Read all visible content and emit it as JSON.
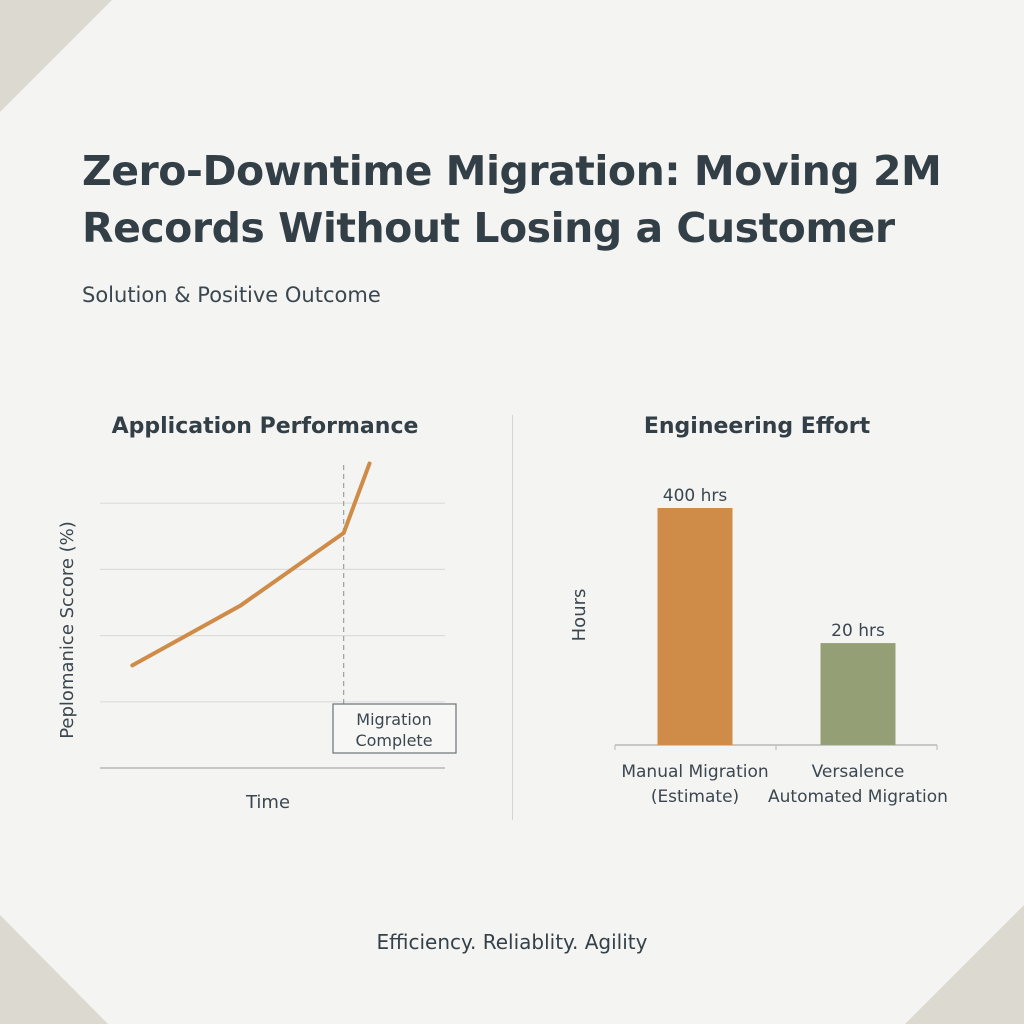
{
  "header": {
    "title": "Zero-Downtime Migration: Moving 2M Records Without Losing a Customer",
    "subtitle": "Solution & Positive Outcome"
  },
  "footer": {
    "tagline": "Efficiency. Reliablity. Agility"
  },
  "colors": {
    "orange": "#cf8c48",
    "green": "#959f75",
    "grid": "#dcdcdc",
    "axis": "#b7bab8",
    "text": "#3b4750",
    "corner": "#dcdad0"
  },
  "chart_data": [
    {
      "type": "line",
      "title": "Application Performance",
      "xlabel": "Time",
      "ylabel": "Peplomanice Sccore (%)",
      "ylim": [
        0,
        100
      ],
      "grid": true,
      "series": [
        {
          "values": [
            {
              "x": 0,
              "y": 31
            },
            {
              "x": 0.5,
              "y": 49
            },
            {
              "x": 0.98,
              "y": 71
            },
            {
              "x": 1.1,
              "y": 92
            }
          ]
        }
      ],
      "xlim": [
        -0.15,
        1.45
      ],
      "marker": {
        "x": 0.98
      },
      "annotation": "Migration Complete"
    },
    {
      "type": "bar",
      "title": "Engineering Effort",
      "ylabel": "Hours",
      "categories": [
        "Manual Migration (Estimate)",
        "Versalence Automated Migration"
      ],
      "category_lines": [
        [
          "Manual Migration",
          "(Estimate)"
        ],
        [
          "Versalence",
          "Automated Migration"
        ]
      ],
      "values": [
        400,
        20
      ],
      "data_labels": [
        "400 hrs",
        "20 hrs"
      ],
      "bar_heights_relative": [
        1.0,
        0.43
      ]
    }
  ]
}
